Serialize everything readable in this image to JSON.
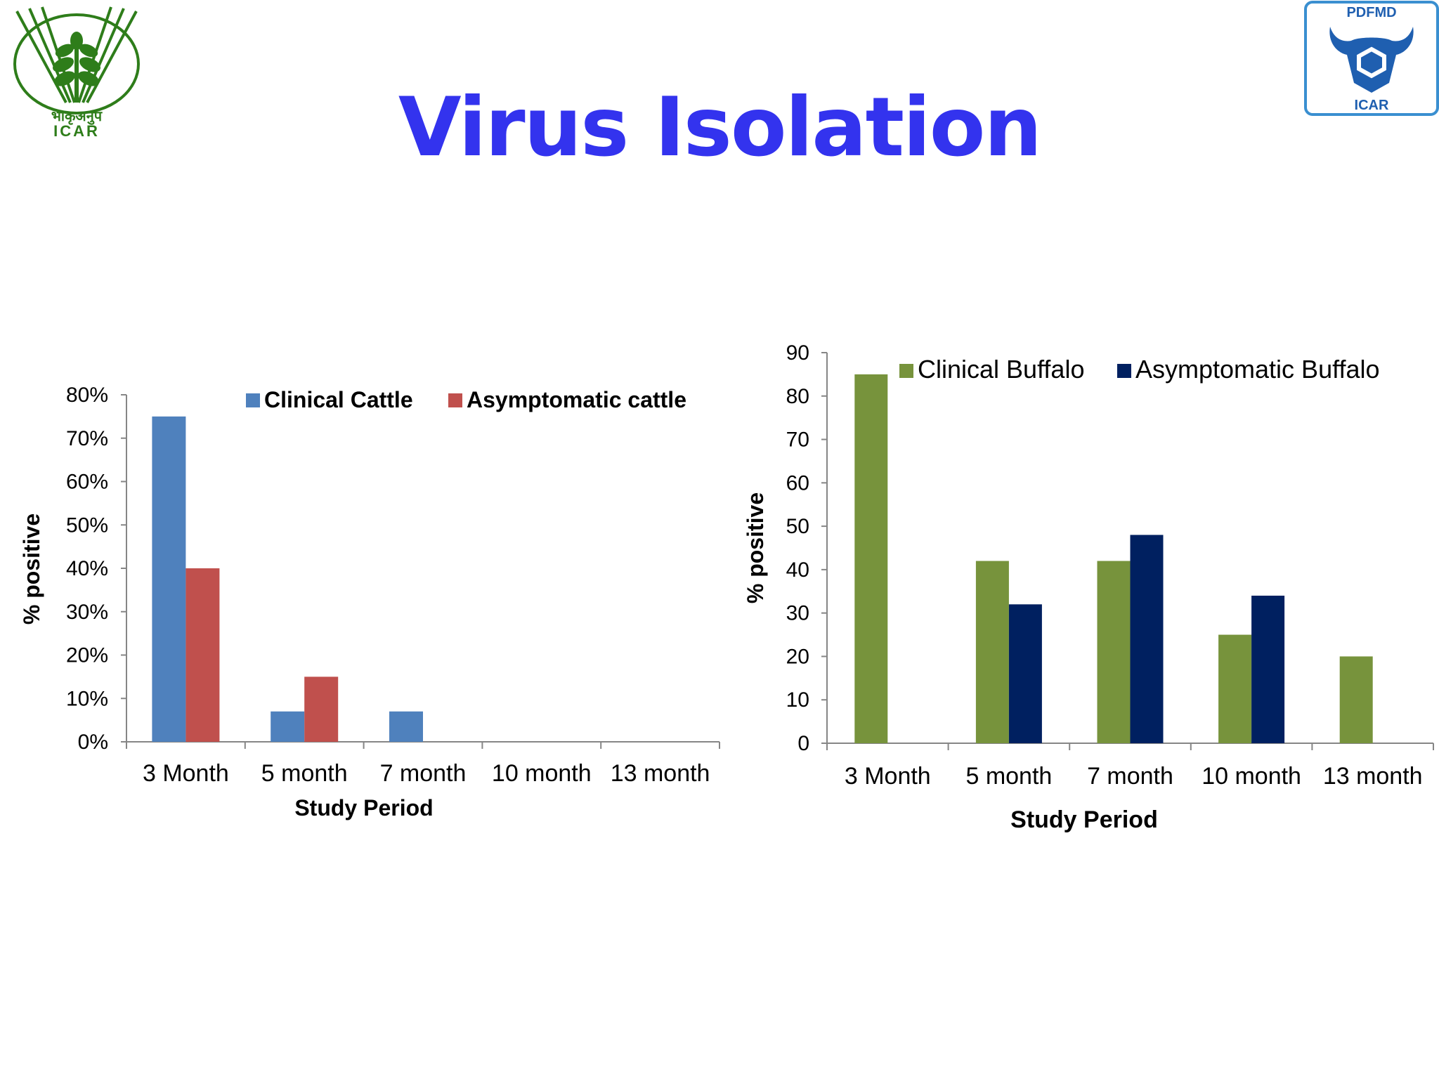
{
  "slide": {
    "title": "Virus Isolation",
    "title_color": "#3333ee"
  },
  "logos": {
    "left": {
      "icon": "icar-wheat-logo",
      "text_hindi": "भाकृअनुप",
      "text": "ICAR",
      "color": "#2e7d1a"
    },
    "right": {
      "icon": "pdfmd-bull-logo",
      "text_top": "PDFMD",
      "text_bottom": "ICAR",
      "color": "#1f5fb0"
    }
  },
  "chart_data": [
    {
      "type": "bar",
      "categories": [
        "3 Month",
        "5 month",
        "7 month",
        "10 month",
        "13 month"
      ],
      "series": [
        {
          "name": "Clinical Cattle",
          "values": [
            75,
            7,
            7,
            0,
            0
          ],
          "color": "#4f81bd"
        },
        {
          "name": "Asymptomatic cattle",
          "values": [
            40,
            15,
            0,
            0,
            0
          ],
          "color": "#c0504d"
        }
      ],
      "xlabel": "Study Period",
      "ylabel": "% positive",
      "ylim": [
        0,
        80
      ],
      "yticks": [
        "0%",
        "10%",
        "20%",
        "30%",
        "40%",
        "50%",
        "60%",
        "70%",
        "80%"
      ],
      "grid": false,
      "legend": "top"
    },
    {
      "type": "bar",
      "categories": [
        "3 Month",
        "5 month",
        "7 month",
        "10 month",
        "13 month"
      ],
      "series": [
        {
          "name": "Clinical Buffalo",
          "values": [
            85,
            42,
            42,
            25,
            20
          ],
          "color": "#77933c"
        },
        {
          "name": "Asymptomatic Buffalo",
          "values": [
            0,
            32,
            48,
            34,
            0
          ],
          "color": "#002060"
        }
      ],
      "xlabel": "Study Period",
      "ylabel": "% positive",
      "ylim": [
        0,
        90
      ],
      "yticks": [
        "0",
        "10",
        "20",
        "30",
        "40",
        "50",
        "60",
        "70",
        "80",
        "90"
      ],
      "grid": false,
      "legend": "top"
    }
  ]
}
